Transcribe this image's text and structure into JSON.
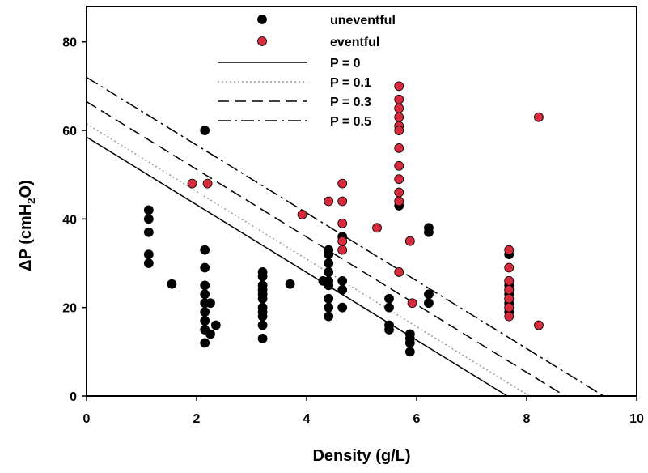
{
  "chart_data": {
    "type": "scatter",
    "xlabel": "Density (g/L)",
    "ylabel_parts": {
      "prefix": "ΔP (cmH",
      "subscript": "2",
      "suffix": "O)"
    },
    "xlim": [
      0,
      10
    ],
    "ylim": [
      0,
      88
    ],
    "x_ticks": [
      "0",
      "2",
      "4",
      "6",
      "8",
      "10"
    ],
    "y_ticks": [
      "0",
      "20",
      "40",
      "60",
      "80"
    ],
    "grid": false,
    "legend_position": "top-center",
    "series": [
      {
        "name": "uneventful",
        "color": "#000000",
        "points": [
          [
            1.13,
            42
          ],
          [
            1.13,
            40
          ],
          [
            1.13,
            37
          ],
          [
            1.13,
            32
          ],
          [
            1.13,
            30
          ],
          [
            1.55,
            25.3
          ],
          [
            2.15,
            60
          ],
          [
            2.15,
            33
          ],
          [
            2.15,
            29
          ],
          [
            2.15,
            25
          ],
          [
            2.15,
            23
          ],
          [
            2.15,
            21
          ],
          [
            2.15,
            19
          ],
          [
            2.15,
            17
          ],
          [
            2.15,
            15
          ],
          [
            2.15,
            12
          ],
          [
            2.25,
            21
          ],
          [
            2.25,
            14
          ],
          [
            2.35,
            16
          ],
          [
            3.2,
            28
          ],
          [
            3.2,
            27
          ],
          [
            3.2,
            25
          ],
          [
            3.2,
            24
          ],
          [
            3.2,
            23
          ],
          [
            3.2,
            22
          ],
          [
            3.2,
            20
          ],
          [
            3.2,
            19
          ],
          [
            3.2,
            18
          ],
          [
            3.2,
            16
          ],
          [
            3.2,
            13
          ],
          [
            3.7,
            25.3
          ],
          [
            4.3,
            26
          ],
          [
            4.4,
            33
          ],
          [
            4.4,
            32
          ],
          [
            4.4,
            30
          ],
          [
            4.4,
            28
          ],
          [
            4.4,
            26
          ],
          [
            4.4,
            25
          ],
          [
            4.4,
            22
          ],
          [
            4.4,
            20
          ],
          [
            4.4,
            18
          ],
          [
            4.65,
            36
          ],
          [
            4.65,
            26
          ],
          [
            4.65,
            24
          ],
          [
            4.65,
            20
          ],
          [
            5.5,
            22
          ],
          [
            5.5,
            20
          ],
          [
            5.5,
            16
          ],
          [
            5.5,
            15
          ],
          [
            5.68,
            43
          ],
          [
            5.88,
            14
          ],
          [
            5.88,
            13
          ],
          [
            5.88,
            12
          ],
          [
            5.88,
            10
          ],
          [
            6.22,
            38
          ],
          [
            6.22,
            37
          ],
          [
            6.22,
            23
          ],
          [
            6.22,
            21
          ],
          [
            7.68,
            32
          ],
          [
            7.68,
            26
          ],
          [
            7.68,
            25
          ],
          [
            7.68,
            24
          ],
          [
            7.68,
            23
          ],
          [
            7.68,
            22
          ],
          [
            7.68,
            21
          ],
          [
            7.68,
            20
          ],
          [
            7.68,
            19
          ]
        ]
      },
      {
        "name": "eventful",
        "color": "#d52b3c",
        "points": [
          [
            1.92,
            48
          ],
          [
            2.2,
            48
          ],
          [
            3.92,
            41
          ],
          [
            4.4,
            44
          ],
          [
            4.65,
            48
          ],
          [
            4.65,
            44
          ],
          [
            4.65,
            39
          ],
          [
            4.65,
            35
          ],
          [
            4.65,
            33
          ],
          [
            5.28,
            38
          ],
          [
            5.68,
            70
          ],
          [
            5.68,
            67
          ],
          [
            5.68,
            65
          ],
          [
            5.68,
            63
          ],
          [
            5.68,
            61
          ],
          [
            5.68,
            60
          ],
          [
            5.68,
            56
          ],
          [
            5.68,
            52
          ],
          [
            5.68,
            49
          ],
          [
            5.68,
            46
          ],
          [
            5.68,
            44
          ],
          [
            5.68,
            28
          ],
          [
            5.88,
            35
          ],
          [
            5.92,
            21
          ],
          [
            7.68,
            33
          ],
          [
            7.68,
            29
          ],
          [
            7.68,
            26
          ],
          [
            7.68,
            24
          ],
          [
            7.68,
            22
          ],
          [
            7.68,
            20
          ],
          [
            7.68,
            18
          ],
          [
            8.22,
            63
          ],
          [
            8.22,
            16
          ]
        ]
      }
    ],
    "lines": [
      {
        "name": "P = 0",
        "style": "solid",
        "color": "#000000",
        "intercept": 58.5,
        "x_at_zero": 7.65
      },
      {
        "name": "P = 0.1",
        "style": "dotted",
        "color": "#9a9a9a",
        "intercept": 61.5,
        "x_at_zero": 8.05
      },
      {
        "name": "P = 0.3",
        "style": "dashed",
        "color": "#000000",
        "intercept": 66.5,
        "x_at_zero": 8.7
      },
      {
        "name": "P = 0.5",
        "style": "dashdot",
        "color": "#000000",
        "intercept": 72,
        "x_at_zero": 9.4
      }
    ]
  }
}
